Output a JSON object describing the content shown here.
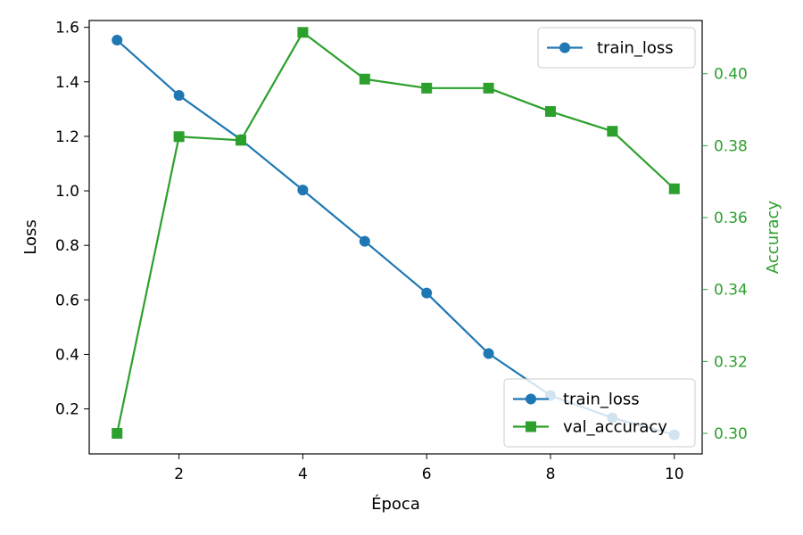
{
  "chart_data": {
    "type": "line",
    "xlabel": "Época",
    "ylabel_left": "Loss",
    "ylabel_right": "Accuracy",
    "x": [
      1,
      2,
      3,
      4,
      5,
      6,
      7,
      8,
      9,
      10
    ],
    "xticks": [
      "2",
      "4",
      "6",
      "8",
      "10"
    ],
    "xtick_values": [
      2,
      4,
      6,
      8,
      10
    ],
    "xlim": [
      0.55,
      10.45
    ],
    "left_axis": {
      "ylim": [
        0.035,
        1.625
      ],
      "ticks": [
        "0.2",
        "0.4",
        "0.6",
        "0.8",
        "1.0",
        "1.2",
        "1.4",
        "1.6"
      ],
      "tick_values": [
        0.2,
        0.4,
        0.6,
        0.8,
        1.0,
        1.2,
        1.4,
        1.6
      ],
      "color": "#000000"
    },
    "right_axis": {
      "ylim": [
        0.2943,
        0.4148
      ],
      "ticks": [
        "0.30",
        "0.32",
        "0.34",
        "0.36",
        "0.38",
        "0.40"
      ],
      "tick_values": [
        0.3,
        0.32,
        0.34,
        0.36,
        0.38,
        0.4
      ],
      "color": "#2ca02c"
    },
    "series": [
      {
        "name": "train_loss",
        "axis": "left",
        "marker": "circle",
        "color": "#1f77b4",
        "values": [
          1.553,
          1.35,
          1.188,
          1.003,
          0.815,
          0.625,
          0.403,
          0.249,
          0.167,
          0.105
        ]
      },
      {
        "name": "val_accuracy",
        "axis": "right",
        "marker": "square",
        "color": "#2ca02c",
        "values": [
          0.3,
          0.3825,
          0.3815,
          0.4115,
          0.3985,
          0.396,
          0.396,
          0.3895,
          0.384,
          0.368
        ]
      }
    ],
    "legends": [
      {
        "placement": "upper-right",
        "entries": [
          "train_loss"
        ]
      },
      {
        "placement": "lower-right",
        "entries": [
          "train_loss",
          "val_accuracy"
        ]
      }
    ],
    "grid": false
  }
}
